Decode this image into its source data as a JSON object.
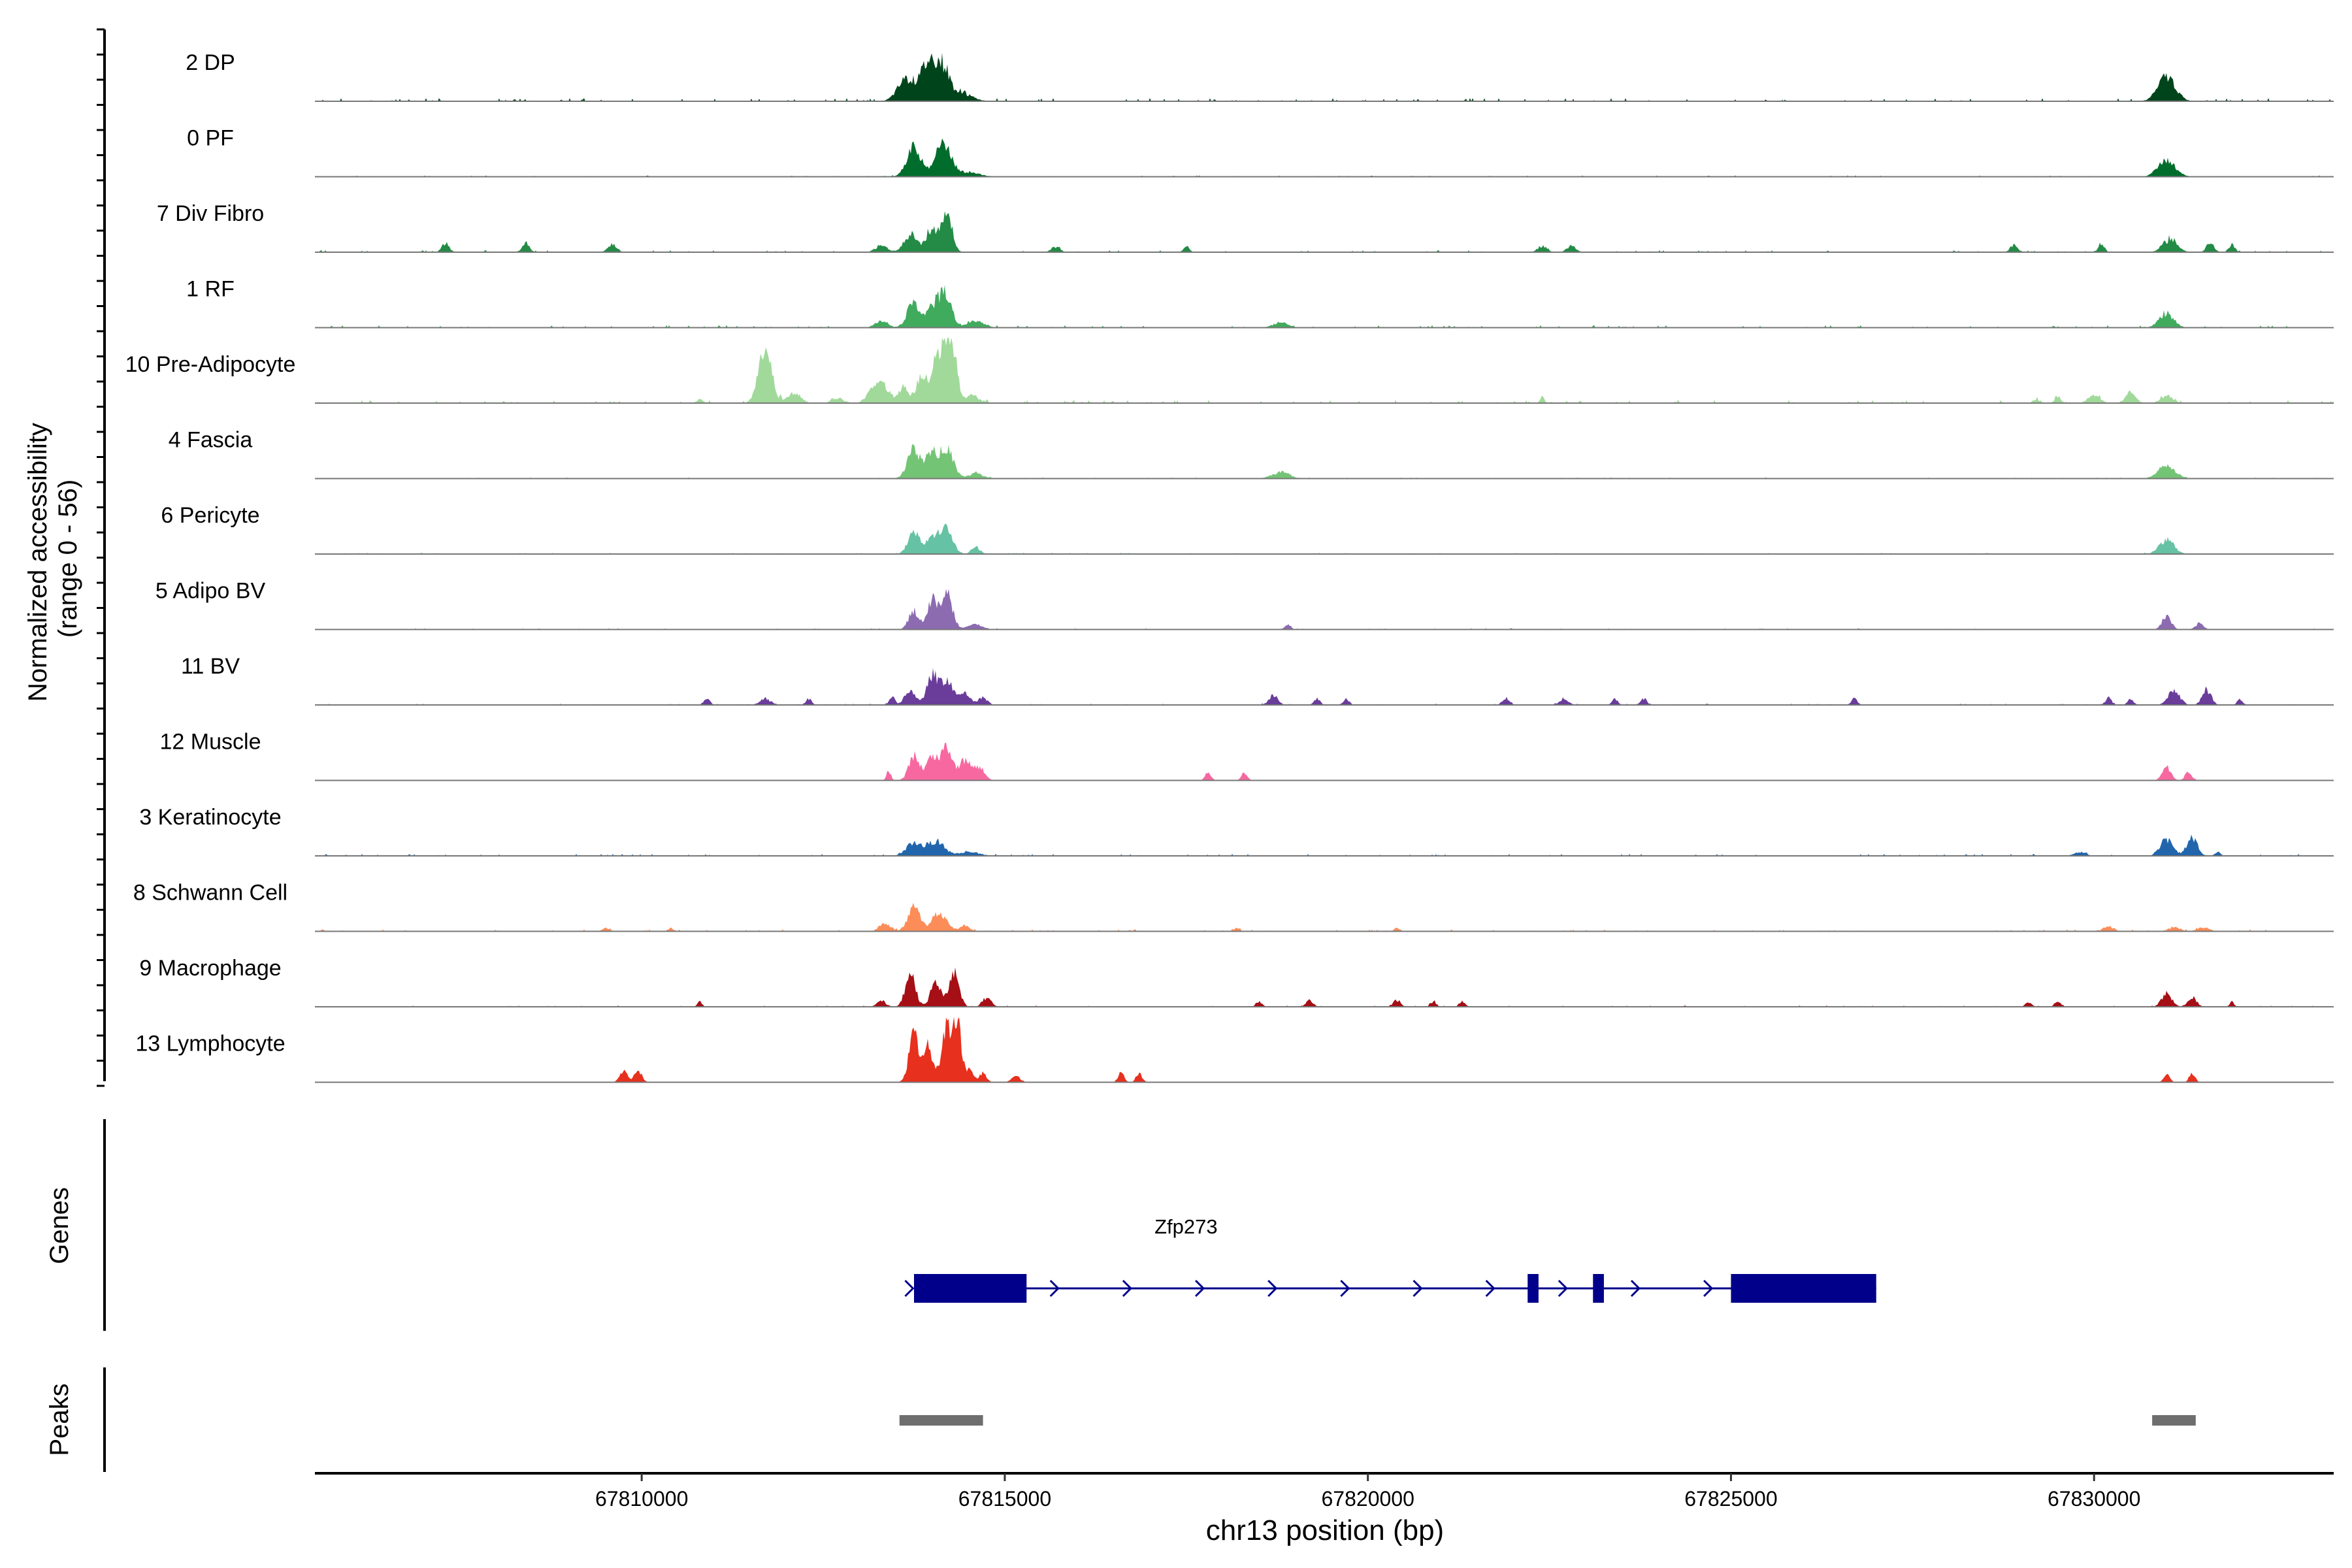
{
  "chart_data": {
    "type": "area",
    "title": "",
    "ylabel_lines": [
      "Normalized accessibility",
      "(range 0 - 56)"
    ],
    "xlabel": "chr13 position (bp)",
    "xlim": [
      67805500,
      67833300
    ],
    "ylim": [
      0,
      56
    ],
    "x_ticks": [
      {
        "value": 67810000,
        "label": "67810000"
      },
      {
        "value": 67815000,
        "label": "67815000"
      },
      {
        "value": 67820000,
        "label": "67820000"
      },
      {
        "value": 67825000,
        "label": "67825000"
      },
      {
        "value": 67830000,
        "label": "67830000"
      }
    ],
    "tracks": [
      {
        "name": "2 DP",
        "color": "#00441b",
        "peaks": [
          [
            67813650,
            120,
            0.35
          ],
          [
            67813950,
            100,
            0.6
          ],
          [
            67814150,
            90,
            0.5
          ],
          [
            67814400,
            150,
            0.12
          ],
          [
            67831000,
            120,
            0.38
          ]
        ],
        "noise": 0.05
      },
      {
        "name": "0 PF",
        "color": "#006d2c",
        "peaks": [
          [
            67813750,
            100,
            0.45
          ],
          [
            67814150,
            110,
            0.5
          ],
          [
            67814500,
            150,
            0.07
          ],
          [
            67831000,
            120,
            0.25
          ]
        ],
        "noise": 0.02
      },
      {
        "name": "7 Div Fibro",
        "color": "#238b45",
        "peaks": [
          [
            67807300,
            50,
            0.14
          ],
          [
            67808400,
            50,
            0.14
          ],
          [
            67809600,
            60,
            0.12
          ],
          [
            67813300,
            80,
            0.1
          ],
          [
            67813700,
            90,
            0.28
          ],
          [
            67814000,
            80,
            0.38
          ],
          [
            67814200,
            70,
            0.6
          ],
          [
            67815700,
            60,
            0.08
          ],
          [
            67817500,
            40,
            0.1
          ],
          [
            67822400,
            60,
            0.1
          ],
          [
            67822800,
            60,
            0.1
          ],
          [
            67828900,
            50,
            0.12
          ],
          [
            67830100,
            40,
            0.14
          ],
          [
            67831050,
            100,
            0.2
          ],
          [
            67831600,
            50,
            0.15
          ],
          [
            67831900,
            40,
            0.12
          ]
        ],
        "noise": 0.03
      },
      {
        "name": "1 RF",
        "color": "#41ab5d",
        "peaks": [
          [
            67813300,
            80,
            0.12
          ],
          [
            67813750,
            90,
            0.4
          ],
          [
            67814050,
            100,
            0.35
          ],
          [
            67814200,
            80,
            0.45
          ],
          [
            67814600,
            120,
            0.1
          ],
          [
            67818800,
            100,
            0.08
          ],
          [
            67831000,
            100,
            0.22
          ]
        ],
        "noise": 0.04
      },
      {
        "name": "10 Pre-Adipocyte",
        "color": "#a1d99b",
        "peaks": [
          [
            67811700,
            90,
            0.8
          ],
          [
            67812100,
            90,
            0.15
          ],
          [
            67812700,
            80,
            0.08
          ],
          [
            67813200,
            90,
            0.25
          ],
          [
            67813350,
            80,
            0.2
          ],
          [
            67813600,
            70,
            0.25
          ],
          [
            67813850,
            70,
            0.45
          ],
          [
            67814050,
            70,
            0.65
          ],
          [
            67814200,
            70,
            0.9
          ],
          [
            67814300,
            60,
            0.55
          ],
          [
            67814550,
            90,
            0.12
          ],
          [
            67810800,
            40,
            0.06
          ],
          [
            67822400,
            30,
            0.1
          ],
          [
            67829200,
            40,
            0.06
          ],
          [
            67829500,
            40,
            0.1
          ],
          [
            67830000,
            80,
            0.12
          ],
          [
            67830500,
            70,
            0.16
          ],
          [
            67831000,
            80,
            0.12
          ]
        ],
        "noise": 0.05
      },
      {
        "name": "4 Fascia",
        "color": "#74c476",
        "peaks": [
          [
            67813750,
            90,
            0.45
          ],
          [
            67814000,
            80,
            0.4
          ],
          [
            67814200,
            90,
            0.45
          ],
          [
            67814600,
            100,
            0.08
          ],
          [
            67818800,
            120,
            0.1
          ],
          [
            67831000,
            120,
            0.2
          ]
        ],
        "noise": 0.02
      },
      {
        "name": "6 Pericyte",
        "color": "#66c2a4",
        "peaks": [
          [
            67813750,
            80,
            0.35
          ],
          [
            67814000,
            80,
            0.3
          ],
          [
            67814200,
            80,
            0.42
          ],
          [
            67814600,
            60,
            0.1
          ],
          [
            67831000,
            100,
            0.22
          ]
        ],
        "noise": 0.02
      },
      {
        "name": "5 Adipo BV",
        "color": "#8c6bb1",
        "peaks": [
          [
            67813750,
            70,
            0.3
          ],
          [
            67814000,
            70,
            0.45
          ],
          [
            67814200,
            80,
            0.55
          ],
          [
            67814600,
            100,
            0.08
          ],
          [
            67818900,
            40,
            0.08
          ],
          [
            67831000,
            60,
            0.22
          ],
          [
            67831450,
            50,
            0.1
          ]
        ],
        "noise": 0.02
      },
      {
        "name": "11 BV",
        "color": "#6a3d9a",
        "peaks": [
          [
            67810900,
            40,
            0.1
          ],
          [
            67811700,
            70,
            0.1
          ],
          [
            67812300,
            40,
            0.1
          ],
          [
            67813450,
            40,
            0.12
          ],
          [
            67813700,
            70,
            0.25
          ],
          [
            67814000,
            70,
            0.48
          ],
          [
            67814200,
            80,
            0.42
          ],
          [
            67814450,
            70,
            0.18
          ],
          [
            67814700,
            60,
            0.12
          ],
          [
            67818700,
            60,
            0.15
          ],
          [
            67819300,
            40,
            0.1
          ],
          [
            67819700,
            40,
            0.1
          ],
          [
            67821900,
            50,
            0.1
          ],
          [
            67822700,
            60,
            0.1
          ],
          [
            67823400,
            40,
            0.1
          ],
          [
            67823800,
            40,
            0.1
          ],
          [
            67826700,
            40,
            0.1
          ],
          [
            67830200,
            40,
            0.12
          ],
          [
            67830500,
            40,
            0.1
          ],
          [
            67831100,
            80,
            0.22
          ],
          [
            67831550,
            60,
            0.24
          ],
          [
            67832000,
            30,
            0.1
          ]
        ],
        "noise": 0.02
      },
      {
        "name": "12 Muscle",
        "color": "#f768a1",
        "peaks": [
          [
            67813400,
            30,
            0.15
          ],
          [
            67813750,
            70,
            0.42
          ],
          [
            67814000,
            80,
            0.38
          ],
          [
            67814200,
            70,
            0.55
          ],
          [
            67814450,
            90,
            0.3
          ],
          [
            67814650,
            70,
            0.2
          ],
          [
            67817800,
            40,
            0.12
          ],
          [
            67818300,
            40,
            0.12
          ],
          [
            67831000,
            60,
            0.2
          ],
          [
            67831300,
            50,
            0.12
          ]
        ],
        "noise": 0.0
      },
      {
        "name": "3 Keratinocyte",
        "color": "#2166ac",
        "peaks": [
          [
            67813750,
            100,
            0.22
          ],
          [
            67814050,
            110,
            0.24
          ],
          [
            67814500,
            150,
            0.06
          ],
          [
            67829800,
            80,
            0.06
          ],
          [
            67831000,
            90,
            0.25
          ],
          [
            67831350,
            70,
            0.3
          ],
          [
            67831700,
            40,
            0.06
          ]
        ],
        "noise": 0.03
      },
      {
        "name": "8 Schwann Cell",
        "color": "#fc8d59",
        "peaks": [
          [
            67813350,
            80,
            0.12
          ],
          [
            67813750,
            80,
            0.38
          ],
          [
            67814100,
            100,
            0.3
          ],
          [
            67814450,
            60,
            0.1
          ],
          [
            67809500,
            50,
            0.05
          ],
          [
            67810400,
            40,
            0.05
          ],
          [
            67818200,
            40,
            0.05
          ],
          [
            67820400,
            40,
            0.05
          ],
          [
            67830200,
            70,
            0.08
          ],
          [
            67831100,
            80,
            0.06
          ],
          [
            67831500,
            80,
            0.06
          ]
        ],
        "noise": 0.03
      },
      {
        "name": "9 Macrophage",
        "color": "#a50f15",
        "peaks": [
          [
            67810800,
            30,
            0.08
          ],
          [
            67813300,
            60,
            0.1
          ],
          [
            67813700,
            70,
            0.5
          ],
          [
            67814050,
            70,
            0.38
          ],
          [
            67814300,
            70,
            0.52
          ],
          [
            67814750,
            60,
            0.14
          ],
          [
            67818500,
            40,
            0.08
          ],
          [
            67819200,
            50,
            0.1
          ],
          [
            67820400,
            50,
            0.1
          ],
          [
            67820900,
            40,
            0.08
          ],
          [
            67821300,
            40,
            0.08
          ],
          [
            67829100,
            40,
            0.08
          ],
          [
            67829500,
            40,
            0.08
          ],
          [
            67831000,
            70,
            0.2
          ],
          [
            67831350,
            60,
            0.15
          ],
          [
            67831900,
            30,
            0.08
          ]
        ],
        "noise": 0.02
      },
      {
        "name": "13 Lymphocyte",
        "color": "#e7301e",
        "peaks": [
          [
            67809750,
            50,
            0.18
          ],
          [
            67809950,
            50,
            0.18
          ],
          [
            67813750,
            70,
            0.75
          ],
          [
            67813950,
            60,
            0.55
          ],
          [
            67814200,
            70,
            0.9
          ],
          [
            67814350,
            50,
            0.95
          ],
          [
            67814500,
            60,
            0.2
          ],
          [
            67814700,
            50,
            0.14
          ],
          [
            67815150,
            60,
            0.1
          ],
          [
            67816600,
            40,
            0.15
          ],
          [
            67816850,
            40,
            0.15
          ],
          [
            67831000,
            40,
            0.14
          ],
          [
            67831350,
            40,
            0.14
          ]
        ],
        "noise": 0.0
      }
    ],
    "genes": [
      {
        "name": "Zfp273",
        "strand": "+",
        "start": 67813750,
        "end": 67827000,
        "exons": [
          [
            67813750,
            67815300
          ],
          [
            67822200,
            67822350
          ],
          [
            67823100,
            67823250
          ],
          [
            67825000,
            67827000
          ]
        ]
      }
    ],
    "gene_color": "#00008b",
    "peaks": [
      [
        67813550,
        67814700
      ],
      [
        67830800,
        67831400
      ]
    ],
    "peak_color": "#6e6e6e",
    "panel_labels": {
      "genes": "Genes",
      "peaks": "Peaks"
    }
  }
}
